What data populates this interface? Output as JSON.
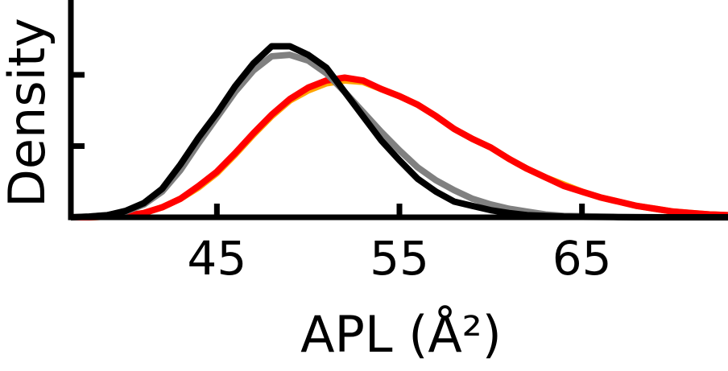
{
  "chart_data": {
    "type": "line",
    "xlabel": "APL (Å²)",
    "ylabel": "Density",
    "xlim": [
      37,
      73
    ],
    "xticks": [
      45,
      55,
      65
    ],
    "ylim": [
      0,
      0.1525
    ],
    "yticks": [
      0.05,
      0.1
    ],
    "x": [
      37,
      38,
      39,
      40,
      41,
      42,
      43,
      44,
      45,
      46,
      47,
      48,
      49,
      50,
      51,
      52,
      53,
      54,
      55,
      56,
      57,
      58,
      59,
      60,
      61,
      62,
      63,
      64,
      65,
      66,
      67,
      68,
      69,
      70,
      71,
      72,
      73
    ],
    "series": [
      {
        "color": "#ffa500",
        "values": [
          0,
          0,
          0.0005,
          0.001,
          0.003,
          0.007,
          0.013,
          0.021,
          0.031,
          0.044,
          0.058,
          0.071,
          0.082,
          0.089,
          0.094,
          0.096,
          0.095,
          0.09,
          0.085,
          0.079,
          0.071,
          0.062,
          0.055,
          0.049,
          0.041,
          0.034,
          0.028,
          0.023,
          0.018,
          0.014,
          0.011,
          0.008,
          0.006,
          0.004,
          0.003,
          0.002,
          0.0015
        ]
      },
      {
        "color": "#ff0000",
        "values": [
          0,
          0,
          0.0005,
          0.001,
          0.003,
          0.007,
          0.013,
          0.022,
          0.032,
          0.045,
          0.059,
          0.072,
          0.083,
          0.091,
          0.096,
          0.098,
          0.096,
          0.09,
          0.085,
          0.079,
          0.071,
          0.062,
          0.055,
          0.049,
          0.041,
          0.034,
          0.028,
          0.022,
          0.018,
          0.014,
          0.011,
          0.008,
          0.006,
          0.004,
          0.003,
          0.002,
          0.0015
        ]
      },
      {
        "color": "#808080",
        "values": [
          0,
          0.0005,
          0.0015,
          0.004,
          0.009,
          0.018,
          0.033,
          0.052,
          0.07,
          0.088,
          0.103,
          0.113,
          0.114,
          0.11,
          0.101,
          0.088,
          0.074,
          0.06,
          0.047,
          0.035,
          0.026,
          0.019,
          0.013,
          0.009,
          0.006,
          0.004,
          0.002,
          0.001,
          0.0008,
          0.0005,
          0.0003,
          0.0002,
          0.0001,
          0,
          0,
          0,
          0
        ]
      },
      {
        "color": "#000000",
        "values": [
          0,
          0.0005,
          0.0015,
          0.0045,
          0.01,
          0.02,
          0.037,
          0.056,
          0.073,
          0.092,
          0.108,
          0.12,
          0.12,
          0.114,
          0.105,
          0.088,
          0.071,
          0.054,
          0.04,
          0.027,
          0.018,
          0.011,
          0.008,
          0.005,
          0.003,
          0.0015,
          0.001,
          0.0005,
          0.0003,
          0.0002,
          0.0001,
          0,
          0,
          0,
          0,
          0,
          0
        ]
      }
    ]
  }
}
